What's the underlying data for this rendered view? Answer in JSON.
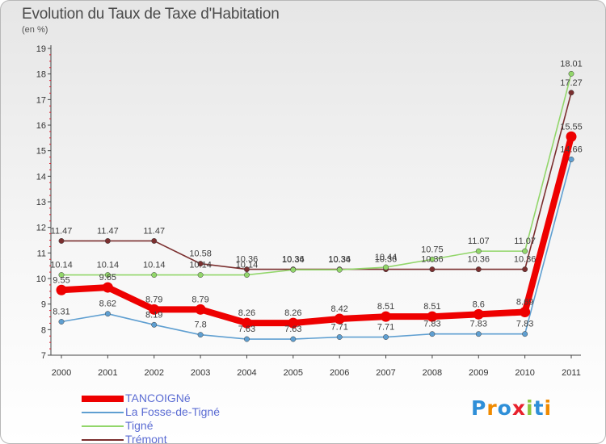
{
  "title": "Evolution du Taux de Taxe d'Habitation",
  "subtitle": "(en %)",
  "logo": {
    "text": "Proxiti",
    "colors": [
      "#2f8fd8",
      "#f08a00",
      "#2f8fd8",
      "#e8212d",
      "#8cc63f",
      "#2f8fd8",
      "#f08a00"
    ]
  },
  "chart_data": {
    "type": "line",
    "title": "Evolution du Taux de Taxe d'Habitation",
    "subtitle": "(en %)",
    "x": [
      "2000",
      "2001",
      "2002",
      "2003",
      "2004",
      "2005",
      "2006",
      "2007",
      "2008",
      "2009",
      "2010",
      "2011"
    ],
    "ylim": [
      7,
      19
    ],
    "yticks": [
      7,
      8,
      9,
      10,
      11,
      12,
      13,
      14,
      15,
      16,
      17,
      18,
      19
    ],
    "grid": false,
    "legend_position": "bottom-left",
    "series": [
      {
        "name": "TANCOIGNé",
        "color": "#ee0000",
        "values": [
          9.55,
          9.65,
          8.79,
          8.79,
          8.26,
          8.26,
          8.42,
          8.51,
          8.51,
          8.6,
          8.69,
          15.55
        ],
        "labels": [
          "9.55",
          "9.65",
          "8.79",
          "8.79",
          "8.26",
          "8.26",
          "8.42",
          "8.51",
          "8.51",
          "8.6",
          "8.69",
          "15.55"
        ]
      },
      {
        "name": "La Fosse-de-Tigné",
        "color": "#5f9fd1",
        "values": [
          8.31,
          8.62,
          8.19,
          7.8,
          7.63,
          7.63,
          7.71,
          7.71,
          7.83,
          7.83,
          7.83,
          14.66
        ],
        "labels": [
          "8.31",
          "8.62",
          "8.19",
          "7.8",
          "7.63",
          "7.63",
          "7.71",
          "7.71",
          "7.83",
          "7.83",
          "7.83",
          "14.66"
        ]
      },
      {
        "name": "Tigné",
        "color": "#92d66a",
        "values": [
          10.14,
          10.14,
          10.14,
          10.14,
          10.14,
          10.34,
          10.34,
          10.44,
          10.75,
          11.07,
          11.07,
          18.01
        ],
        "labels": [
          "10.14",
          "10.14",
          "10.14",
          "10.14",
          "10.14",
          "10.34",
          "10.34",
          "10.44",
          "10.75",
          "11.07",
          "11.07",
          "18.01"
        ]
      },
      {
        "name": "Trémont",
        "color": "#7b2f2f",
        "values": [
          11.47,
          11.47,
          11.47,
          10.58,
          10.36,
          10.36,
          10.36,
          10.36,
          10.36,
          10.36,
          10.36,
          17.27
        ],
        "labels": [
          "11.47",
          "11.47",
          "11.47",
          "10.58",
          "10.36",
          "10.36",
          "10.36",
          "10.36",
          "10.36",
          "10.36",
          "10.36",
          "17.27"
        ]
      }
    ]
  }
}
